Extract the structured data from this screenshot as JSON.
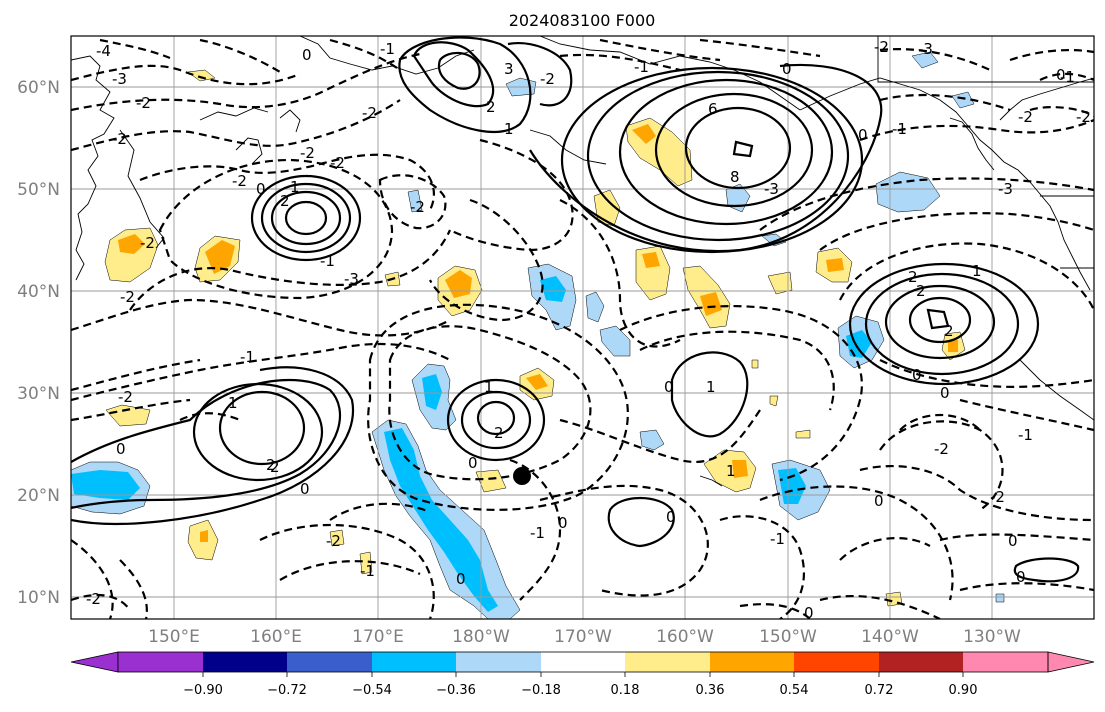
{
  "title": "2024083100 F000",
  "lat_labels": [
    "60°N",
    "50°N",
    "40°N",
    "30°N",
    "20°N",
    "10°N"
  ],
  "lon_labels": [
    "150°E",
    "160°E",
    "170°E",
    "180°W",
    "170°W",
    "160°W",
    "150°W",
    "140°W",
    "130°W"
  ],
  "colorbar": {
    "ticks": [
      "−0.90",
      "−0.72",
      "−0.54",
      "−0.36",
      "−0.18",
      "0.18",
      "0.36",
      "0.54",
      "0.72",
      "0.90"
    ],
    "colors": [
      "#9b30d0",
      "#00008b",
      "#3a5fcd",
      "#00bfff",
      "#add8f8",
      "#ffffff",
      "#ffec8b",
      "#ffa500",
      "#ff4500",
      "#b22222",
      "#ff88b0"
    ]
  },
  "contour_labels": [
    {
      "id": "c1",
      "text": "-4"
    },
    {
      "id": "c2",
      "text": "-3"
    },
    {
      "id": "c3",
      "text": "-2"
    },
    {
      "id": "c4",
      "text": "0"
    },
    {
      "id": "c5",
      "text": "-1"
    },
    {
      "id": "c6",
      "text": "-2"
    },
    {
      "id": "c7",
      "text": "-2"
    },
    {
      "id": "c8",
      "text": "-2"
    },
    {
      "id": "c9",
      "text": "-2"
    },
    {
      "id": "c10",
      "text": "0"
    },
    {
      "id": "c11",
      "text": "2"
    },
    {
      "id": "c12",
      "text": "1"
    },
    {
      "id": "c13",
      "text": "-2"
    },
    {
      "id": "c14",
      "text": "-3"
    },
    {
      "id": "c15",
      "text": "-2"
    },
    {
      "id": "c16",
      "text": "-2"
    },
    {
      "id": "c17",
      "text": "-1"
    },
    {
      "id": "c18",
      "text": "3"
    },
    {
      "id": "c19",
      "text": "2"
    },
    {
      "id": "c20",
      "text": "1"
    },
    {
      "id": "c21",
      "text": "-2"
    },
    {
      "id": "c22",
      "text": "-1"
    },
    {
      "id": "c23",
      "text": "6"
    },
    {
      "id": "c24",
      "text": "8"
    },
    {
      "id": "c25",
      "text": "0"
    },
    {
      "id": "c26",
      "text": "-3"
    },
    {
      "id": "c27",
      "text": "-2"
    },
    {
      "id": "c28",
      "text": "-3"
    },
    {
      "id": "c29",
      "text": "2"
    },
    {
      "id": "c30",
      "text": "-2"
    },
    {
      "id": "c31",
      "text": "-3"
    },
    {
      "id": "c32",
      "text": "-2"
    },
    {
      "id": "c33",
      "text": "-1"
    },
    {
      "id": "c34",
      "text": "-1"
    },
    {
      "id": "c35",
      "text": "-1"
    },
    {
      "id": "c36",
      "text": "-2"
    },
    {
      "id": "c37",
      "text": "0"
    },
    {
      "id": "c38",
      "text": "1"
    },
    {
      "id": "c39",
      "text": "2"
    },
    {
      "id": "c40",
      "text": "1"
    },
    {
      "id": "c41",
      "text": "2"
    },
    {
      "id": "c42",
      "text": "0"
    },
    {
      "id": "c43",
      "text": "2"
    },
    {
      "id": "c44",
      "text": "1"
    },
    {
      "id": "c45",
      "text": "0"
    },
    {
      "id": "c46",
      "text": "0"
    },
    {
      "id": "c47",
      "text": "1"
    },
    {
      "id": "c48",
      "text": "2"
    },
    {
      "id": "c49",
      "text": "0"
    },
    {
      "id": "c50",
      "text": "-2"
    },
    {
      "id": "c51",
      "text": "2"
    },
    {
      "id": "c52",
      "text": "0"
    },
    {
      "id": "c53",
      "text": "-1"
    },
    {
      "id": "c54",
      "text": "-1"
    },
    {
      "id": "c55",
      "text": "-2"
    },
    {
      "id": "c56",
      "text": "0"
    },
    {
      "id": "c57",
      "text": "0"
    },
    {
      "id": "c58",
      "text": "-1"
    },
    {
      "id": "c59",
      "text": "0"
    },
    {
      "id": "c60",
      "text": "0"
    },
    {
      "id": "c61",
      "text": "1"
    },
    {
      "id": "c62",
      "text": "0"
    },
    {
      "id": "c63",
      "text": "-2"
    },
    {
      "id": "c64",
      "text": "-1"
    },
    {
      "id": "c65",
      "text": "-2"
    },
    {
      "id": "c66",
      "text": "0"
    },
    {
      "id": "c67",
      "text": "0"
    },
    {
      "id": "c68",
      "text": "-2"
    },
    {
      "id": "c69",
      "text": "0"
    },
    {
      "id": "c70",
      "text": "0"
    }
  ]
}
